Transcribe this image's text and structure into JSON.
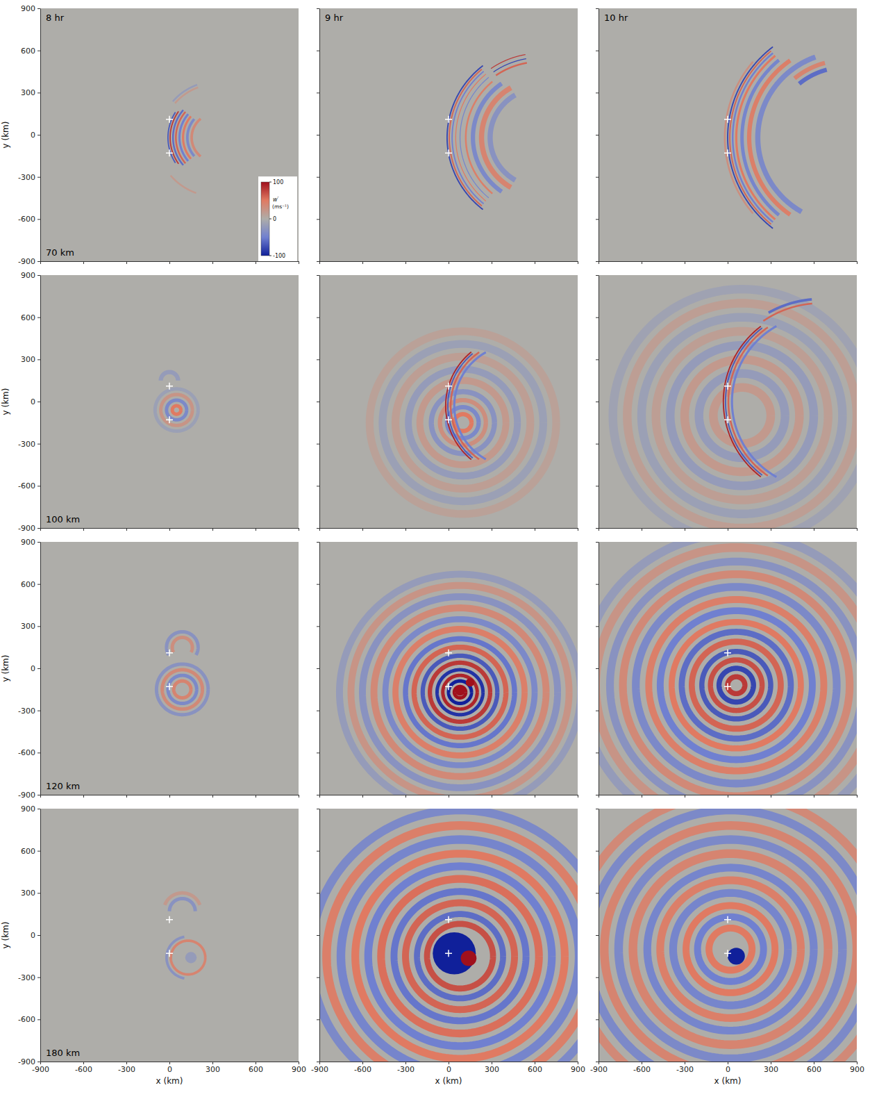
{
  "chart_data": {
    "type": "heatmap_panels",
    "times": [
      "8 hr",
      "9 hr",
      "10 hr"
    ],
    "altitudes": [
      "70 km",
      "100 km",
      "120 km",
      "180 km"
    ],
    "xlabel": "x (km)",
    "ylabel": "y (km)",
    "xlim": [
      -900,
      900
    ],
    "ylim": [
      -900,
      900
    ],
    "xticks": [
      -900,
      -600,
      -300,
      0,
      300,
      600,
      900
    ],
    "yticks": [
      -900,
      -600,
      -300,
      0,
      300,
      600,
      900
    ],
    "colorbar": {
      "label": "w′",
      "units": "(ms⁻¹)",
      "range": [
        -100,
        100
      ],
      "ticks": [
        -100,
        0,
        100
      ]
    },
    "markers": [
      {
        "x": 0,
        "y": 110
      },
      {
        "x": 0,
        "y": -130
      }
    ],
    "panels": [
      {
        "rings": [
          {
            "x": 330,
            "y": -20,
            "r": 340,
            "w": -70,
            "span": [
              148,
              212
            ]
          },
          {
            "x": 330,
            "y": -20,
            "r": 325,
            "w": 80,
            "span": [
              145,
              215
            ]
          },
          {
            "x": 330,
            "y": -20,
            "r": 305,
            "w": -60,
            "span": [
              140,
              220
            ]
          },
          {
            "x": 330,
            "y": -20,
            "r": 285,
            "w": 60,
            "span": [
              140,
              220
            ]
          },
          {
            "x": 330,
            "y": -20,
            "r": 260,
            "w": -50,
            "span": [
              140,
              220
            ]
          },
          {
            "x": 330,
            "y": -20,
            "r": 235,
            "w": 50,
            "span": [
              140,
              220
            ]
          },
          {
            "x": 330,
            "y": -20,
            "r": 205,
            "w": -40,
            "span": [
              140,
              220
            ]
          },
          {
            "x": 330,
            "y": -20,
            "r": 175,
            "w": 35,
            "span": [
              130,
              230
            ]
          },
          {
            "x": 330,
            "y": -20,
            "r": 380,
            "w": 20,
            "span": [
              110,
              140
            ]
          },
          {
            "x": 330,
            "y": -20,
            "r": 400,
            "w": -20,
            "span": [
              110,
              140
            ]
          },
          {
            "x": 330,
            "y": -20,
            "r": 420,
            "w": 20,
            "span": [
              220,
              250
            ]
          }
        ],
        "spots": []
      },
      {
        "rings": [
          {
            "x": 640,
            "y": -20,
            "r": 650,
            "w": -80,
            "span": [
              128,
              232
            ]
          },
          {
            "x": 640,
            "y": -20,
            "r": 635,
            "w": 60,
            "span": [
              130,
              230
            ]
          },
          {
            "x": 640,
            "y": -20,
            "r": 615,
            "w": -50,
            "span": [
              130,
              230
            ]
          },
          {
            "x": 640,
            "y": -20,
            "r": 590,
            "w": 50,
            "span": [
              130,
              230
            ]
          },
          {
            "x": 640,
            "y": -20,
            "r": 560,
            "w": -45,
            "span": [
              130,
              230
            ]
          },
          {
            "x": 640,
            "y": -20,
            "r": 520,
            "w": 45,
            "span": [
              130,
              230
            ]
          },
          {
            "x": 640,
            "y": -20,
            "r": 470,
            "w": -40,
            "span": [
              125,
              235
            ]
          },
          {
            "x": 640,
            "y": -20,
            "r": 410,
            "w": 40,
            "span": [
              120,
              240
            ]
          },
          {
            "x": 640,
            "y": -20,
            "r": 350,
            "w": -30,
            "span": [
              120,
              240
            ]
          },
          {
            "x": 640,
            "y": -20,
            "r": 600,
            "w": 80,
            "span": [
              100,
              125
            ]
          },
          {
            "x": 640,
            "y": -20,
            "r": 570,
            "w": -80,
            "span": [
              100,
              125
            ]
          },
          {
            "x": 640,
            "y": -20,
            "r": 540,
            "w": 60,
            "span": [
              100,
              125
            ]
          }
        ],
        "spots": []
      },
      {
        "rings": [
          {
            "x": 820,
            "y": -20,
            "r": 840,
            "w": 30,
            "span": [
              140,
              220
            ]
          },
          {
            "x": 820,
            "y": -20,
            "r": 820,
            "w": -80,
            "span": [
              128,
              232
            ]
          },
          {
            "x": 820,
            "y": -20,
            "r": 805,
            "w": 60,
            "span": [
              130,
              230
            ]
          },
          {
            "x": 820,
            "y": -20,
            "r": 785,
            "w": -50,
            "span": [
              130,
              230
            ]
          },
          {
            "x": 820,
            "y": -20,
            "r": 760,
            "w": 50,
            "span": [
              130,
              230
            ]
          },
          {
            "x": 820,
            "y": -20,
            "r": 720,
            "w": -45,
            "span": [
              130,
              230
            ]
          },
          {
            "x": 820,
            "y": -20,
            "r": 670,
            "w": 45,
            "span": [
              125,
              235
            ]
          },
          {
            "x": 820,
            "y": -20,
            "r": 610,
            "w": -40,
            "span": [
              110,
              240
            ]
          },
          {
            "x": 820,
            "y": -20,
            "r": 550,
            "w": 40,
            "span": [
              105,
              130
            ]
          },
          {
            "x": 820,
            "y": -20,
            "r": 500,
            "w": -60,
            "span": [
              105,
              130
            ]
          }
        ],
        "spots": []
      },
      {
        "rings": [
          {
            "x": 50,
            "y": -60,
            "r": 30,
            "w": 50
          },
          {
            "x": 50,
            "y": -60,
            "r": 70,
            "w": -40
          },
          {
            "x": 50,
            "y": -60,
            "r": 110,
            "w": 25
          },
          {
            "x": 50,
            "y": -60,
            "r": 150,
            "w": -15
          },
          {
            "x": 0,
            "y": 150,
            "r": 60,
            "w": -20,
            "span": [
              0,
              180
            ]
          }
        ],
        "spots": []
      },
      {
        "rings": [
          {
            "x": 100,
            "y": -150,
            "r": 60,
            "w": 50
          },
          {
            "x": 100,
            "y": -150,
            "r": 110,
            "w": -40
          },
          {
            "x": 100,
            "y": -150,
            "r": 160,
            "w": 30
          },
          {
            "x": 100,
            "y": -150,
            "r": 220,
            "w": -30
          },
          {
            "x": 100,
            "y": -150,
            "r": 300,
            "w": 20
          },
          {
            "x": 100,
            "y": -150,
            "r": 380,
            "w": -20
          },
          {
            "x": 100,
            "y": -150,
            "r": 470,
            "w": 15
          },
          {
            "x": 100,
            "y": -150,
            "r": 560,
            "w": -15
          },
          {
            "x": 100,
            "y": -150,
            "r": 650,
            "w": 12
          },
          {
            "x": 480,
            "y": -30,
            "r": 500,
            "w": 90,
            "span": [
              130,
              230
            ]
          },
          {
            "x": 480,
            "y": -30,
            "r": 485,
            "w": -70,
            "span": [
              130,
              230
            ]
          },
          {
            "x": 480,
            "y": -30,
            "r": 465,
            "w": 60,
            "span": [
              125,
              235
            ]
          },
          {
            "x": 480,
            "y": -30,
            "r": 440,
            "w": -50,
            "span": [
              120,
              240
            ]
          }
        ],
        "spots": []
      },
      {
        "rings": [
          {
            "x": 100,
            "y": -100,
            "r": 200,
            "w": 20
          },
          {
            "x": 100,
            "y": -100,
            "r": 300,
            "w": -20
          },
          {
            "x": 100,
            "y": -100,
            "r": 400,
            "w": 20
          },
          {
            "x": 100,
            "y": -100,
            "r": 500,
            "w": -20
          },
          {
            "x": 100,
            "y": -100,
            "r": 600,
            "w": 15
          },
          {
            "x": 100,
            "y": -100,
            "r": 700,
            "w": -15
          },
          {
            "x": 100,
            "y": -100,
            "r": 800,
            "w": 15
          },
          {
            "x": 100,
            "y": -100,
            "r": 900,
            "w": -12
          },
          {
            "x": 650,
            "y": 0,
            "r": 680,
            "w": 90,
            "span": [
              128,
              232
            ]
          },
          {
            "x": 650,
            "y": 0,
            "r": 665,
            "w": -70,
            "span": [
              128,
              232
            ]
          },
          {
            "x": 650,
            "y": 0,
            "r": 645,
            "w": 60,
            "span": [
              125,
              235
            ]
          },
          {
            "x": 650,
            "y": 0,
            "r": 620,
            "w": -50,
            "span": [
              120,
              240
            ]
          },
          {
            "x": 650,
            "y": 0,
            "r": 700,
            "w": 60,
            "span": [
              95,
              125
            ]
          },
          {
            "x": 650,
            "y": 0,
            "r": 730,
            "w": -60,
            "span": [
              95,
              120
            ]
          }
        ],
        "spots": []
      },
      {
        "rings": [
          {
            "x": 90,
            "y": -150,
            "r": 60,
            "w": 40
          },
          {
            "x": 90,
            "y": -150,
            "r": 100,
            "w": -40
          },
          {
            "x": 90,
            "y": -150,
            "r": 140,
            "w": 35
          },
          {
            "x": 90,
            "y": -150,
            "r": 180,
            "w": -30
          },
          {
            "x": 90,
            "y": 150,
            "r": 70,
            "w": 30,
            "span": [
              -30,
              210
            ]
          },
          {
            "x": 90,
            "y": 150,
            "r": 110,
            "w": -30,
            "span": [
              -30,
              210
            ]
          }
        ],
        "spots": []
      },
      {
        "rings": [
          {
            "x": 80,
            "y": -170,
            "r": 840,
            "w": -20
          },
          {
            "x": 80,
            "y": -170,
            "r": 760,
            "w": 25
          },
          {
            "x": 80,
            "y": -170,
            "r": 680,
            "w": -30
          },
          {
            "x": 80,
            "y": -170,
            "r": 600,
            "w": 35
          },
          {
            "x": 80,
            "y": -170,
            "r": 520,
            "w": -40
          },
          {
            "x": 80,
            "y": -170,
            "r": 450,
            "w": 45
          },
          {
            "x": 80,
            "y": -170,
            "r": 380,
            "w": -55
          },
          {
            "x": 80,
            "y": -170,
            "r": 320,
            "w": 60
          },
          {
            "x": 80,
            "y": -170,
            "r": 260,
            "w": -70
          },
          {
            "x": 80,
            "y": -170,
            "r": 210,
            "w": 80
          },
          {
            "x": 80,
            "y": -170,
            "r": 160,
            "w": -90
          },
          {
            "x": 80,
            "y": -170,
            "r": 120,
            "w": 90
          },
          {
            "x": 80,
            "y": -170,
            "r": 80,
            "w": -100
          },
          {
            "x": 80,
            "y": -170,
            "r": 40,
            "w": 100
          }
        ],
        "spots": [
          {
            "x": 80,
            "y": -160,
            "r": 35,
            "w": 100
          },
          {
            "x": 150,
            "y": -100,
            "r": 30,
            "w": 100
          }
        ]
      },
      {
        "rings": [
          {
            "x": 60,
            "y": -120,
            "r": 1080,
            "w": -20
          },
          {
            "x": 60,
            "y": -120,
            "r": 980,
            "w": 25
          },
          {
            "x": 60,
            "y": -120,
            "r": 880,
            "w": -30
          },
          {
            "x": 60,
            "y": -120,
            "r": 790,
            "w": 35
          },
          {
            "x": 60,
            "y": -120,
            "r": 700,
            "w": -40
          },
          {
            "x": 60,
            "y": -120,
            "r": 610,
            "w": 45
          },
          {
            "x": 60,
            "y": -120,
            "r": 530,
            "w": -50
          },
          {
            "x": 60,
            "y": -120,
            "r": 450,
            "w": 50
          },
          {
            "x": 60,
            "y": -120,
            "r": 380,
            "w": -60
          },
          {
            "x": 60,
            "y": -120,
            "r": 310,
            "w": 60
          },
          {
            "x": 60,
            "y": -120,
            "r": 240,
            "w": -70
          },
          {
            "x": 60,
            "y": -120,
            "r": 180,
            "w": 70
          },
          {
            "x": 60,
            "y": -120,
            "r": 120,
            "w": -80
          },
          {
            "x": 60,
            "y": -120,
            "r": 60,
            "w": 80
          }
        ],
        "spots": []
      },
      {
        "rings": [
          {
            "x": 130,
            "y": -160,
            "r": 120,
            "w": 40
          },
          {
            "x": 130,
            "y": -160,
            "r": 150,
            "w": -30,
            "span": [
              100,
              260
            ]
          },
          {
            "x": 90,
            "y": 170,
            "r": 90,
            "w": -30,
            "span": [
              0,
              180
            ]
          },
          {
            "x": 90,
            "y": 170,
            "r": 130,
            "w": 20,
            "span": [
              20,
              160
            ]
          }
        ],
        "spots": [
          {
            "x": 150,
            "y": -160,
            "r": 40,
            "w": -20
          }
        ]
      },
      {
        "rings": [
          {
            "x": 80,
            "y": -150,
            "r": 1040,
            "w": -40
          },
          {
            "x": 80,
            "y": -150,
            "r": 930,
            "w": 45
          },
          {
            "x": 80,
            "y": -150,
            "r": 830,
            "w": -45
          },
          {
            "x": 80,
            "y": -150,
            "r": 730,
            "w": 50
          },
          {
            "x": 80,
            "y": -150,
            "r": 640,
            "w": -50
          },
          {
            "x": 80,
            "y": -150,
            "r": 550,
            "w": 55
          },
          {
            "x": 80,
            "y": -150,
            "r": 460,
            "w": -55
          },
          {
            "x": 80,
            "y": -150,
            "r": 380,
            "w": 60
          },
          {
            "x": 80,
            "y": -150,
            "r": 300,
            "w": -60
          },
          {
            "x": 80,
            "y": -150,
            "r": 230,
            "w": 70
          }
        ],
        "spots": [
          {
            "x": 40,
            "y": -130,
            "r": 150,
            "w": -100
          },
          {
            "x": 140,
            "y": -165,
            "r": 55,
            "w": 100
          }
        ]
      },
      {
        "rings": [
          {
            "x": 20,
            "y": -100,
            "r": 1100,
            "w": 35
          },
          {
            "x": 20,
            "y": -100,
            "r": 990,
            "w": -40
          },
          {
            "x": 20,
            "y": -100,
            "r": 880,
            "w": 40
          },
          {
            "x": 20,
            "y": -100,
            "r": 780,
            "w": -40
          },
          {
            "x": 20,
            "y": -100,
            "r": 680,
            "w": 40
          },
          {
            "x": 20,
            "y": -100,
            "r": 580,
            "w": -45
          },
          {
            "x": 20,
            "y": -100,
            "r": 490,
            "w": 45
          },
          {
            "x": 20,
            "y": -100,
            "r": 400,
            "w": -45
          },
          {
            "x": 20,
            "y": -100,
            "r": 310,
            "w": 50
          },
          {
            "x": 20,
            "y": -100,
            "r": 230,
            "w": -50
          },
          {
            "x": 20,
            "y": -100,
            "r": 150,
            "w": 50
          }
        ],
        "spots": [
          {
            "x": 60,
            "y": -150,
            "r": 60,
            "w": -100
          }
        ]
      }
    ]
  }
}
